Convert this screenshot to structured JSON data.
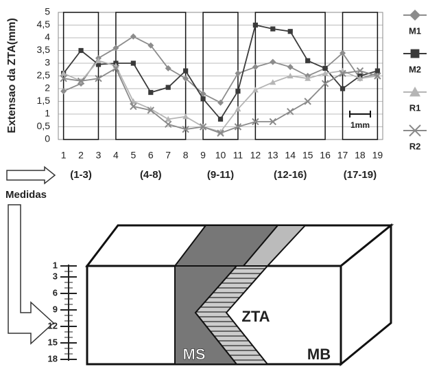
{
  "chart_data": {
    "type": "line",
    "y_label": "Extensao da ZTA(mm)",
    "x": [
      1,
      2,
      3,
      4,
      5,
      6,
      7,
      8,
      9,
      10,
      11,
      12,
      13,
      14,
      15,
      16,
      17,
      18,
      19
    ],
    "xlim": [
      0.7,
      19.3
    ],
    "ylim": [
      0,
      5
    ],
    "yticks": [
      0,
      {
        "value": 0.5,
        "label": "0,5"
      },
      1,
      {
        "value": 1.5,
        "label": "1,5"
      },
      2,
      {
        "value": 2.5,
        "label": "2,5"
      },
      3,
      {
        "value": 3.5,
        "label": "3,5"
      },
      4,
      {
        "value": 4.5,
        "label": "4,5"
      },
      5
    ],
    "grid": true,
    "series": [
      {
        "name": "M1",
        "color": "#8c8c8c",
        "marker": "diamond",
        "values": [
          1.9,
          2.2,
          3.2,
          3.6,
          4.05,
          3.7,
          2.8,
          2.4,
          1.8,
          1.45,
          2.6,
          2.85,
          3.05,
          2.85,
          2.5,
          2.8,
          3.4,
          2.4,
          2.6
        ]
      },
      {
        "name": "M2",
        "color": "#3a3a3a",
        "marker": "square",
        "values": [
          2.6,
          3.5,
          2.95,
          3.0,
          3.0,
          1.85,
          2.05,
          2.7,
          1.6,
          0.8,
          1.9,
          4.5,
          4.35,
          4.25,
          3.1,
          2.8,
          2.0,
          2.5,
          2.7
        ]
      },
      {
        "name": "R1",
        "color": "#b5b5b5",
        "marker": "triangle",
        "values": [
          2.6,
          2.3,
          3.1,
          2.9,
          1.5,
          1.2,
          0.8,
          0.9,
          0.5,
          0.3,
          1.2,
          1.95,
          2.25,
          2.5,
          2.4,
          2.6,
          2.7,
          2.4,
          2.5
        ]
      },
      {
        "name": "R2",
        "color": "#8a8a8a",
        "marker": "x",
        "values": [
          2.4,
          2.3,
          2.4,
          2.8,
          1.3,
          1.15,
          0.6,
          0.4,
          0.5,
          0.25,
          0.5,
          0.7,
          0.7,
          1.1,
          1.5,
          2.2,
          2.6,
          2.7,
          2.5
        ]
      }
    ],
    "regions": [
      {
        "label": "(1-3)",
        "start": 1,
        "end": 3
      },
      {
        "label": "(4-8)",
        "start": 4,
        "end": 8
      },
      {
        "label": "(9-11)",
        "start": 9,
        "end": 11
      },
      {
        "label": "(12-16)",
        "start": 12,
        "end": 16
      },
      {
        "label": "(17-19)",
        "start": 17,
        "end": 19
      }
    ],
    "scale_bar_label": "1mm"
  },
  "diagram": {
    "arrow_label": "Medidas",
    "scale": [
      1,
      3,
      6,
      9,
      12,
      15,
      18
    ],
    "zones": {
      "ms": "MS",
      "zta": "ZTA",
      "mb": "MB"
    }
  }
}
